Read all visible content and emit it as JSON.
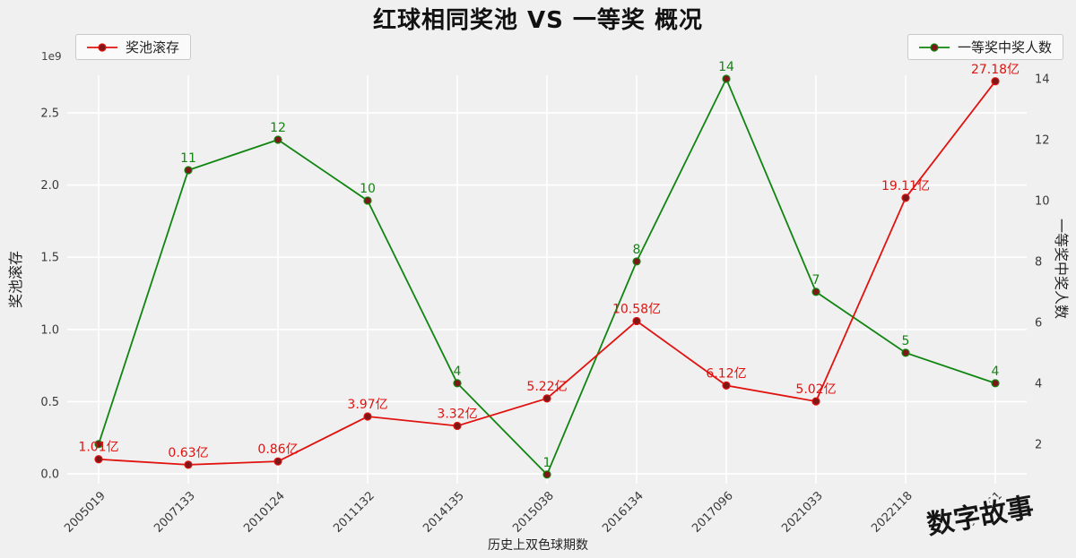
{
  "watermark": "数字故事",
  "chart_data": {
    "type": "line",
    "title": "红球相同奖池 VS 一等奖 概况",
    "xlabel": "历史上双色球期数",
    "ylabel_left": "奖池滚存",
    "ylabel_right": "一等奖中奖人数",
    "offset_text": "1e9",
    "grid": true,
    "background": "#f0f0f0",
    "grid_color": "#ffffff",
    "categories": [
      "2005019",
      "2007133",
      "2010124",
      "2011132",
      "2014135",
      "2015038",
      "2016134",
      "2017096",
      "2021033",
      "2022118",
      "2023001"
    ],
    "series": [
      {
        "id": "pool",
        "name": "奖池滚存",
        "axis": "left",
        "unit": "1e9",
        "color": "#e01310",
        "marker_fill": "#7e1818",
        "z": 2,
        "values": [
          0.101,
          0.063,
          0.086,
          0.397,
          0.332,
          0.522,
          1.058,
          0.612,
          0.502,
          1.911,
          2.718
        ],
        "labels": [
          "1.01亿",
          "0.63亿",
          "0.86亿",
          "3.97亿",
          "3.32亿",
          "5.22亿",
          "10.58亿",
          "6.12亿",
          "5.02亿",
          "19.11亿",
          "27.18亿"
        ]
      },
      {
        "id": "winners",
        "name": "一等奖中奖人数",
        "axis": "right",
        "unit": "人",
        "color": "#118511",
        "marker_fill": "#7e1818",
        "z": 1,
        "values": [
          2,
          11,
          12,
          10,
          4,
          1,
          8,
          14,
          7,
          5,
          4
        ],
        "labels": [
          "",
          "11",
          "12",
          "10",
          "4",
          "1",
          "8",
          "14",
          "7",
          "5",
          "4"
        ]
      }
    ],
    "left_ticks": [
      "0.0",
      "0.5",
      "1.0",
      "1.5",
      "2.0",
      "2.5"
    ],
    "left_tick_values": [
      0,
      0.5,
      1.0,
      1.5,
      2.0,
      2.5
    ],
    "left_ylim": [
      -0.068,
      2.76
    ],
    "right_ticks": [
      "2",
      "4",
      "6",
      "8",
      "10",
      "12",
      "14"
    ],
    "right_tick_values": [
      2,
      4,
      6,
      8,
      10,
      12,
      14
    ],
    "right_ylim": [
      0.7,
      14.118
    ],
    "legend_position": "top-left and top-right"
  }
}
